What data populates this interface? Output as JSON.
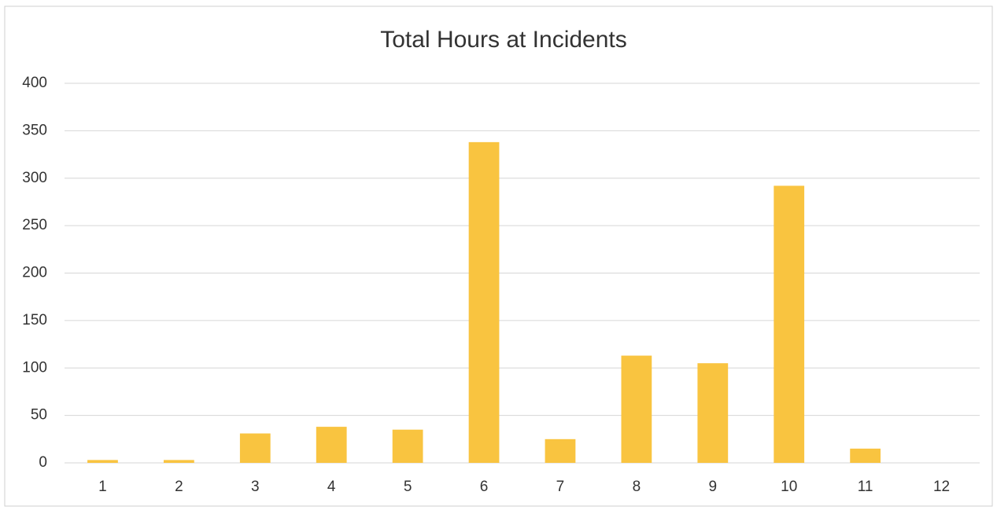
{
  "chart_data": {
    "type": "bar",
    "title": "Total Hours at Incidents",
    "categories": [
      "1",
      "2",
      "3",
      "4",
      "5",
      "6",
      "7",
      "8",
      "9",
      "10",
      "11",
      "12"
    ],
    "values": [
      3,
      3,
      31,
      38,
      35,
      338,
      25,
      113,
      105,
      292,
      15,
      0
    ],
    "color": "#f9c440",
    "ylim": [
      0,
      400
    ],
    "yticks": [
      0,
      50,
      100,
      150,
      200,
      250,
      300,
      350,
      400
    ],
    "grid": true
  }
}
